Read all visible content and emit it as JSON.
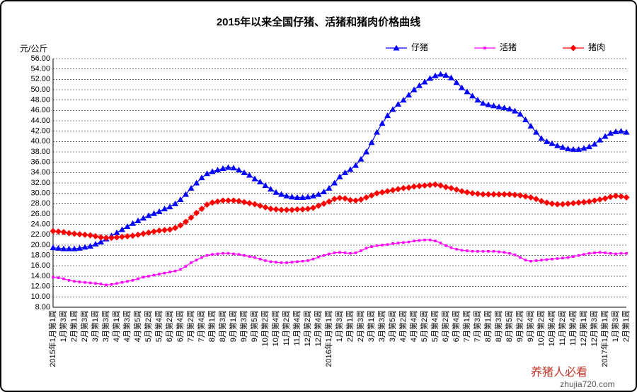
{
  "chart_data": {
    "type": "line",
    "title": "2015年以来全国仔猪、活猪和猪肉价格曲线",
    "ylabel": "元/公斤",
    "watermark": [
      "养猪人必看",
      "zhujia720.com"
    ],
    "legend": "top-right",
    "grid": true,
    "ylim": [
      8,
      56
    ],
    "yticks": [
      {
        "value": 8,
        "label": "8.00"
      },
      {
        "value": 10,
        "label": "10.00"
      },
      {
        "value": 12,
        "label": "12.00"
      },
      {
        "value": 14,
        "label": "14.00"
      },
      {
        "value": 16,
        "label": "16.00"
      },
      {
        "value": 18,
        "label": "18.00"
      },
      {
        "value": 20,
        "label": "20.00"
      },
      {
        "value": 22,
        "label": "22.00"
      },
      {
        "value": 24,
        "label": "24.00"
      },
      {
        "value": 26,
        "label": "26.00"
      },
      {
        "value": 28,
        "label": "28.00"
      },
      {
        "value": 30,
        "label": "30.00"
      },
      {
        "value": 32,
        "label": "32.00"
      },
      {
        "value": 34,
        "label": "34.00"
      },
      {
        "value": 36,
        "label": "36.00"
      },
      {
        "value": 38,
        "label": "38.00"
      },
      {
        "value": 40,
        "label": "40.00"
      },
      {
        "value": 42,
        "label": "42.00"
      },
      {
        "value": 44,
        "label": "44.00"
      },
      {
        "value": 46,
        "label": "46.00"
      },
      {
        "value": 48,
        "label": "48.00"
      },
      {
        "value": 50,
        "label": "50.00"
      },
      {
        "value": 52,
        "label": "52.00"
      },
      {
        "value": 54,
        "label": "54.00"
      },
      {
        "value": 56,
        "label": "56.00"
      }
    ],
    "categories": [
      "2015年1月第1周",
      null,
      "1月第3周",
      null,
      "2月第1周",
      null,
      "2月第3周",
      null,
      "3月第1周",
      null,
      "3月第3周",
      null,
      "4月第1周",
      null,
      "4月第3周",
      null,
      "4月第5周",
      null,
      "5月第2周",
      null,
      "5月第4周",
      null,
      "6月第2周",
      null,
      "6月第4周",
      null,
      "7月第2周",
      null,
      "7月第4周",
      null,
      "8月第1周",
      null,
      "8月第3周",
      null,
      "9月第1周",
      null,
      "9月第3周",
      null,
      "9月第5周",
      null,
      "10月第2周",
      null,
      "10月第4周",
      null,
      "11月第2周",
      null,
      "11月第4周",
      null,
      "12月第2周",
      null,
      "12月第4周",
      null,
      "2016年1月第1周",
      null,
      "1月第3周",
      null,
      "2月第1周",
      null,
      "2月第3周",
      null,
      "3月第1周",
      null,
      "3月第3周",
      null,
      "3月第5周",
      null,
      "4月第2周",
      null,
      "4月第4周",
      null,
      "5月第2周",
      null,
      "5月第4周",
      null,
      "6月第2周",
      null,
      "6月第4周",
      null,
      "7月第1周",
      null,
      "7月第3周",
      null,
      "8月第1周",
      null,
      "8月第3周",
      null,
      "8月第5周",
      null,
      "9月第2周",
      null,
      "9月第4周",
      null,
      "10月第2周",
      null,
      "10月第4周",
      null,
      "11月第2周",
      null,
      "11月第4周",
      null,
      "12月第1周",
      null,
      "12月第3周",
      null,
      "2017年1月第1周",
      null,
      "1月第3周",
      null,
      "2月第1周"
    ],
    "series": [
      {
        "name": "仔猪",
        "color": "#0000ff",
        "marker": "triangle",
        "values": [
          19.5,
          19.4,
          19.3,
          19.3,
          19.3,
          19.4,
          19.6,
          19.8,
          20.2,
          20.6,
          21.2,
          21.8,
          22.4,
          23.0,
          23.6,
          24.2,
          24.7,
          25.2,
          25.7,
          26.1,
          26.5,
          27.0,
          27.4,
          28.0,
          28.8,
          29.8,
          31.0,
          32.0,
          33.0,
          33.8,
          34.2,
          34.5,
          34.8,
          35.0,
          34.9,
          34.5,
          34.0,
          33.5,
          32.8,
          32.2,
          31.5,
          30.8,
          30.2,
          29.8,
          29.5,
          29.3,
          29.2,
          29.2,
          29.3,
          29.5,
          29.8,
          30.3,
          31.0,
          32.0,
          33.2,
          34.0,
          34.6,
          35.4,
          36.6,
          38.0,
          39.8,
          41.8,
          43.5,
          45.0,
          46.2,
          47.2,
          48.0,
          49.0,
          50.0,
          50.8,
          51.5,
          52.2,
          52.7,
          53.0,
          52.8,
          52.3,
          51.4,
          50.4,
          49.6,
          48.8,
          48.0,
          47.4,
          47.1,
          46.9,
          46.7,
          46.5,
          46.3,
          45.9,
          45.3,
          44.2,
          43.0,
          41.8,
          40.6,
          40.0,
          39.6,
          39.2,
          38.9,
          38.6,
          38.5,
          38.5,
          38.7,
          39.0,
          39.5,
          40.3,
          41.0,
          41.6,
          41.9,
          42.0,
          41.8
        ]
      },
      {
        "name": "活猪",
        "color": "#ff00ff",
        "marker": "square",
        "values": [
          13.8,
          13.7,
          13.5,
          13.2,
          13.0,
          12.9,
          12.8,
          12.7,
          12.6,
          12.5,
          12.3,
          12.4,
          12.6,
          12.8,
          13.0,
          13.2,
          13.5,
          13.8,
          14.0,
          14.2,
          14.4,
          14.6,
          14.8,
          15.0,
          15.3,
          15.9,
          16.6,
          17.1,
          17.6,
          18.0,
          18.2,
          18.3,
          18.4,
          18.4,
          18.3,
          18.2,
          18.0,
          17.8,
          17.6,
          17.3,
          17.0,
          16.8,
          16.7,
          16.6,
          16.6,
          16.7,
          16.8,
          16.9,
          17.0,
          17.3,
          17.7,
          18.0,
          18.3,
          18.5,
          18.6,
          18.5,
          18.4,
          18.5,
          18.9,
          19.4,
          19.7,
          19.9,
          20.0,
          20.1,
          20.3,
          20.4,
          20.5,
          20.6,
          20.8,
          20.9,
          21.0,
          21.0,
          20.8,
          20.4,
          19.9,
          19.5,
          19.2,
          19.0,
          18.9,
          18.8,
          18.8,
          18.8,
          18.8,
          18.8,
          18.7,
          18.6,
          18.4,
          18.1,
          17.6,
          17.1,
          16.9,
          17.0,
          17.1,
          17.2,
          17.3,
          17.4,
          17.5,
          17.6,
          17.8,
          18.0,
          18.2,
          18.4,
          18.5,
          18.6,
          18.5,
          18.4,
          18.3,
          18.4,
          18.4
        ]
      },
      {
        "name": "猪肉",
        "color": "#ff0000",
        "marker": "diamond",
        "values": [
          22.7,
          22.6,
          22.5,
          22.3,
          22.2,
          22.1,
          22.0,
          21.9,
          21.7,
          21.5,
          21.4,
          21.4,
          21.5,
          21.6,
          21.7,
          21.8,
          22.0,
          22.2,
          22.4,
          22.6,
          22.8,
          22.9,
          23.0,
          23.3,
          23.8,
          24.5,
          25.3,
          26.2,
          27.0,
          27.8,
          28.2,
          28.4,
          28.6,
          28.6,
          28.6,
          28.5,
          28.3,
          28.1,
          27.9,
          27.6,
          27.3,
          27.0,
          26.9,
          26.8,
          26.8,
          26.8,
          26.9,
          26.9,
          27.0,
          27.2,
          27.6,
          28.0,
          28.4,
          28.9,
          29.1,
          29.0,
          28.7,
          28.6,
          28.8,
          29.2,
          29.6,
          30.0,
          30.2,
          30.4,
          30.6,
          30.8,
          31.0,
          31.1,
          31.3,
          31.4,
          31.5,
          31.6,
          31.7,
          31.5,
          31.2,
          31.0,
          30.7,
          30.4,
          30.2,
          30.0,
          29.9,
          29.8,
          29.8,
          29.8,
          29.8,
          29.8,
          29.8,
          29.7,
          29.6,
          29.4,
          29.2,
          28.9,
          28.5,
          28.2,
          28.0,
          27.9,
          27.9,
          28.0,
          28.1,
          28.2,
          28.3,
          28.4,
          28.6,
          28.8,
          29.0,
          29.3,
          29.5,
          29.4,
          29.2
        ]
      }
    ]
  }
}
